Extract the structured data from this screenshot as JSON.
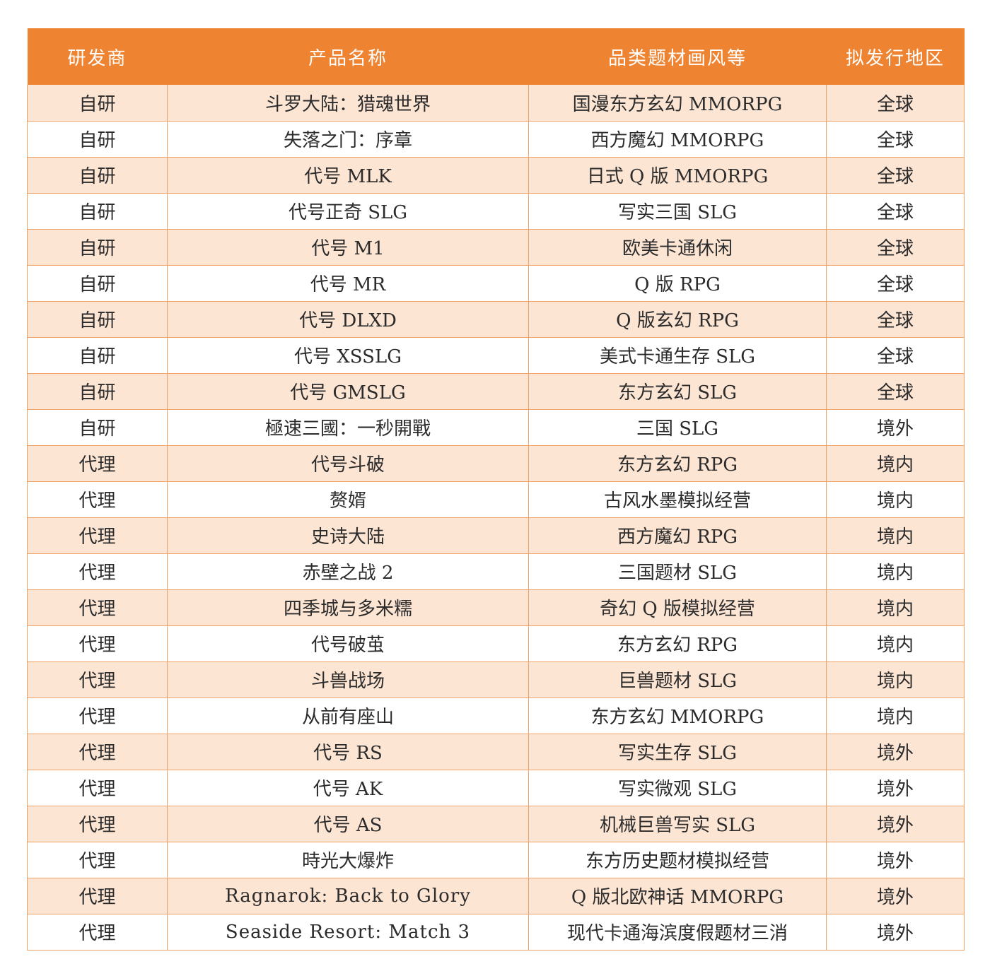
{
  "table": {
    "headers": [
      "研发商",
      "产品名称",
      "品类题材画风等",
      "拟发行地区"
    ],
    "rows": [
      [
        "自研",
        "斗罗大陆：猎魂世界",
        "国漫东方玄幻 MMORPG",
        "全球"
      ],
      [
        "自研",
        "失落之门：序章",
        "西方魔幻 MMORPG",
        "全球"
      ],
      [
        "自研",
        "代号 MLK",
        "日式 Q 版 MMORPG",
        "全球"
      ],
      [
        "自研",
        "代号正奇 SLG",
        "写实三国 SLG",
        "全球"
      ],
      [
        "自研",
        "代号 M1",
        "欧美卡通休闲",
        "全球"
      ],
      [
        "自研",
        "代号 MR",
        "Q 版 RPG",
        "全球"
      ],
      [
        "自研",
        "代号 DLXD",
        "Q 版玄幻 RPG",
        "全球"
      ],
      [
        "自研",
        "代号 XSSLG",
        "美式卡通生存 SLG",
        "全球"
      ],
      [
        "自研",
        "代号 GMSLG",
        "东方玄幻 SLG",
        "全球"
      ],
      [
        "自研",
        "極速三國：一秒開戰",
        "三国 SLG",
        "境外"
      ],
      [
        "代理",
        "代号斗破",
        "东方玄幻 RPG",
        "境内"
      ],
      [
        "代理",
        "赘婿",
        "古风水墨模拟经营",
        "境内"
      ],
      [
        "代理",
        "史诗大陆",
        "西方魔幻 RPG",
        "境内"
      ],
      [
        "代理",
        "赤壁之战 2",
        "三国题材 SLG",
        "境内"
      ],
      [
        "代理",
        "四季城与多米糯",
        "奇幻 Q 版模拟经营",
        "境内"
      ],
      [
        "代理",
        "代号破茧",
        "东方玄幻 RPG",
        "境内"
      ],
      [
        "代理",
        "斗兽战场",
        "巨兽题材 SLG",
        "境内"
      ],
      [
        "代理",
        "从前有座山",
        "东方玄幻 MMORPG",
        "境内"
      ],
      [
        "代理",
        "代号 RS",
        "写实生存 SLG",
        "境外"
      ],
      [
        "代理",
        "代号 AK",
        "写实微观 SLG",
        "境外"
      ],
      [
        "代理",
        "代号 AS",
        "机械巨兽写实 SLG",
        "境外"
      ],
      [
        "代理",
        "時光大爆炸",
        "东方历史题材模拟经营",
        "境外"
      ],
      [
        "代理",
        "Ragnarok: Back to Glory",
        "Q 版北欧神话 MMORPG",
        "境外"
      ],
      [
        "代理",
        "Seaside Resort: Match 3",
        "现代卡通海滨度假题材三消",
        "境外"
      ]
    ]
  },
  "colors": {
    "header_bg": "#ee8432",
    "header_text": "#ffffff",
    "row_alt_bg": "#fde5d4",
    "border": "#f0a266"
  }
}
